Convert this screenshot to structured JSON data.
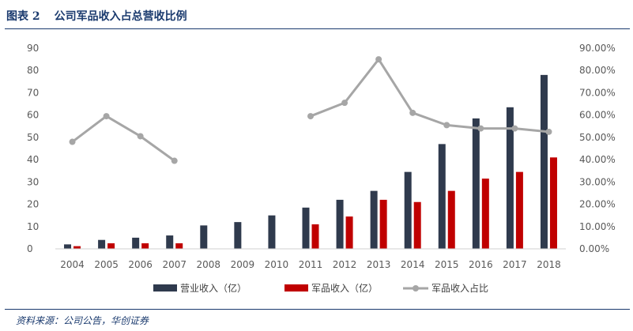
{
  "figure": {
    "label": "图表 2",
    "title": "公司军品收入占总营收比例",
    "source": "资料来源：公司公告，华创证券"
  },
  "colors": {
    "revenue": "#2f3a4d",
    "military": "#c00000",
    "ratio": "#a6a6a6",
    "title": "#1a3a6e"
  },
  "chart_data": {
    "type": "bar",
    "categories": [
      "2004",
      "2005",
      "2006",
      "2007",
      "2008",
      "2009",
      "2010",
      "2011",
      "2012",
      "2013",
      "2014",
      "2015",
      "2016",
      "2017",
      "2018"
    ],
    "series": [
      {
        "name": "营业收入（亿）",
        "type": "bar",
        "axis": "left",
        "values": [
          2,
          4,
          5,
          6,
          10.5,
          12,
          15,
          18.5,
          22,
          26,
          34.5,
          47,
          58.5,
          63.5,
          78
        ]
      },
      {
        "name": "军品收入（亿）",
        "type": "bar",
        "axis": "left",
        "values": [
          1.2,
          2.5,
          2.5,
          2.5,
          null,
          null,
          null,
          11,
          14.5,
          22,
          21,
          26,
          31.5,
          34.5,
          41
        ]
      },
      {
        "name": "军品收入占比",
        "type": "line",
        "axis": "right",
        "values": [
          48,
          59.5,
          50.5,
          39.5,
          null,
          null,
          null,
          59.5,
          65.5,
          85,
          61,
          55.5,
          54,
          54,
          52.5
        ]
      }
    ],
    "y_left": {
      "min": 0,
      "max": 90,
      "ticks": [
        "0",
        "10",
        "20",
        "30",
        "40",
        "50",
        "60",
        "70",
        "80",
        "90"
      ]
    },
    "y_right": {
      "min": 0,
      "max": 90,
      "ticks": [
        "0.00%",
        "10.00%",
        "20.00%",
        "30.00%",
        "40.00%",
        "50.00%",
        "60.00%",
        "70.00%",
        "80.00%",
        "90.00%"
      ]
    },
    "grid": false,
    "legend_position": "bottom"
  }
}
